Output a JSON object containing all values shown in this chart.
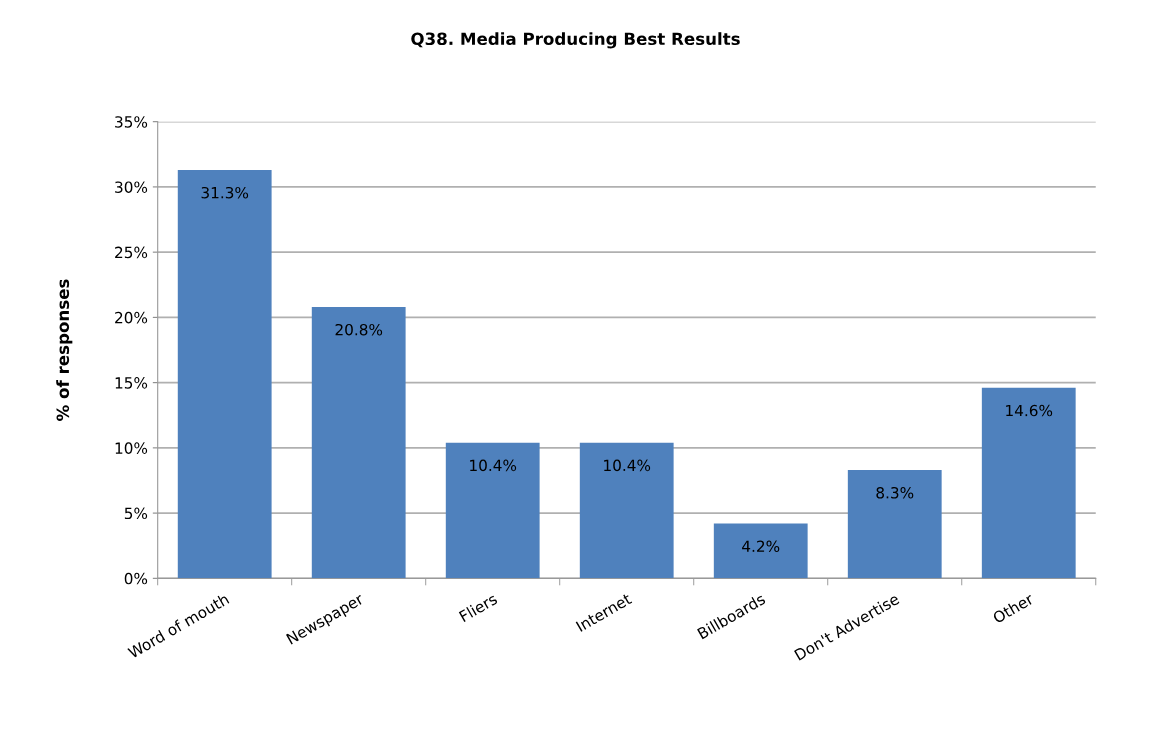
{
  "chart_data": {
    "type": "bar",
    "title": "Q38. Media Producing Best Results",
    "ylabel": "% of responses",
    "categories": [
      "Word of mouth",
      "Newspaper",
      "Fliers",
      "Internet",
      "Billboards",
      "Don't Advertise",
      "Other"
    ],
    "values": [
      31.3,
      20.8,
      10.4,
      10.4,
      4.2,
      8.3,
      14.6
    ],
    "value_labels": [
      "31.3%",
      "20.8%",
      "10.4%",
      "10.4%",
      "4.2%",
      "8.3%",
      "14.6%"
    ],
    "color": "#4f81bd",
    "ylim": [
      0,
      35
    ],
    "yticks": [
      {
        "value": 0,
        "label": "0%"
      },
      {
        "value": 5,
        "label": "5%"
      },
      {
        "value": 10,
        "label": "10%"
      },
      {
        "value": 15,
        "label": "15%"
      },
      {
        "value": 20,
        "label": "20%"
      },
      {
        "value": 25,
        "label": "25%"
      },
      {
        "value": 30,
        "label": "30%"
      },
      {
        "value": 35,
        "label": "35%"
      }
    ],
    "grid": "y",
    "legend": false
  }
}
